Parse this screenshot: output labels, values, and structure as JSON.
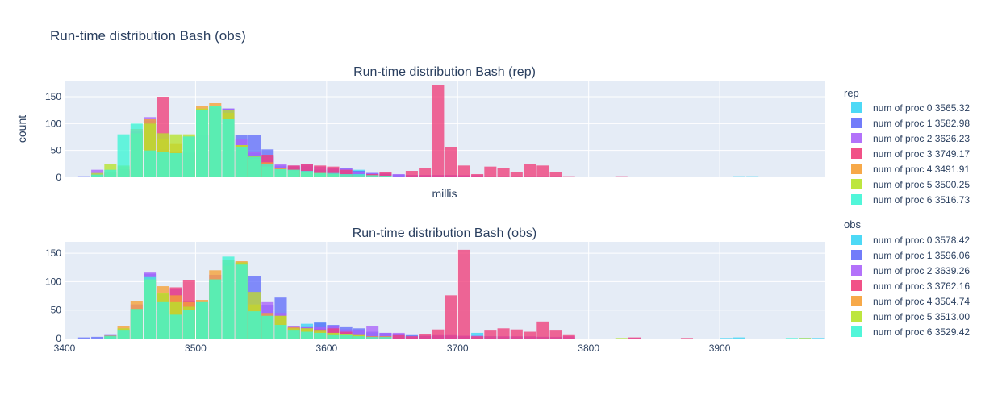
{
  "title": "Run-time distribution Bash (obs)",
  "chart_data": [
    {
      "type": "bar",
      "title": "Run-time distribution Bash (rep)",
      "xlabel": "millis",
      "ylabel": "count",
      "xlim": [
        3400,
        3980
      ],
      "ylim": [
        0,
        180
      ],
      "yticks": [
        0,
        50,
        100,
        150
      ],
      "bin_width": 10,
      "stacked": "overlay",
      "legend_title": "rep",
      "series": [
        {
          "name": "num of proc 0  3565.32",
          "color": "#3ad5f5",
          "x": [
            3535,
            3545,
            3555,
            3565,
            3575,
            3585,
            3595,
            3605,
            3615,
            3625,
            3635,
            3645,
            3655,
            3665,
            3675,
            3685,
            3695,
            3705,
            3715,
            3725,
            3735,
            3745,
            3755,
            3765,
            3775,
            3785,
            3915,
            3925
          ],
          "y": [
            40,
            45,
            40,
            20,
            18,
            20,
            14,
            12,
            12,
            14,
            8,
            6,
            5,
            4,
            3,
            3,
            3,
            2,
            2,
            2,
            2,
            2,
            2,
            2,
            2,
            1,
            2,
            2
          ]
        },
        {
          "name": "num of proc 1  3582.98",
          "color": "#636efa",
          "x": [
            3415,
            3425,
            3435,
            3445,
            3455,
            3465,
            3475,
            3485,
            3495,
            3505,
            3515,
            3525,
            3535,
            3545,
            3555,
            3565,
            3575,
            3585,
            3595,
            3605,
            3615,
            3625,
            3635,
            3645,
            3655,
            3665,
            3675,
            3685,
            3695,
            3705
          ],
          "y": [
            2,
            5,
            8,
            12,
            80,
            106,
            50,
            48,
            46,
            78,
            128,
            128,
            78,
            78,
            52,
            22,
            20,
            22,
            14,
            16,
            18,
            12,
            8,
            6,
            5,
            4,
            4,
            4,
            4,
            3
          ]
        },
        {
          "name": "num of proc 2  3626.23",
          "color": "#ab63fa",
          "x": [
            3425,
            3435,
            3445,
            3455,
            3465,
            3475,
            3485,
            3495,
            3505,
            3515,
            3525,
            3535,
            3545,
            3555,
            3565,
            3575,
            3585,
            3595,
            3605,
            3615,
            3625,
            3635,
            3645,
            3655,
            3665,
            3675,
            3685,
            3695,
            3705,
            3715,
            3725,
            3735,
            3745,
            3755,
            3765,
            3775,
            3835
          ],
          "y": [
            14,
            8,
            15,
            85,
            112,
            52,
            48,
            46,
            78,
            130,
            128,
            70,
            48,
            38,
            24,
            22,
            24,
            20,
            18,
            16,
            10,
            8,
            8,
            6,
            4,
            4,
            4,
            4,
            4,
            4,
            2,
            2,
            2,
            2,
            2,
            2,
            1
          ]
        },
        {
          "name": "num of proc 3  3749.17",
          "color": "#ef3e7a",
          "x": [
            3475,
            3545,
            3555,
            3575,
            3585,
            3595,
            3605,
            3615,
            3635,
            3645,
            3665,
            3675,
            3685,
            3695,
            3705,
            3715,
            3725,
            3735,
            3745,
            3755,
            3765,
            3775,
            3785,
            3815,
            3825
          ],
          "y": [
            150,
            38,
            42,
            22,
            25,
            22,
            20,
            14,
            6,
            10,
            12,
            18,
            171,
            57,
            22,
            6,
            20,
            18,
            10,
            24,
            22,
            10,
            2,
            1,
            2
          ]
        },
        {
          "name": "num of proc 4  3491.91",
          "color": "#f6a035",
          "x": [
            3435,
            3445,
            3455,
            3465,
            3475,
            3485,
            3495,
            3505,
            3515,
            3525,
            3535,
            3545,
            3555,
            3565,
            3575,
            3585,
            3595,
            3605,
            3615,
            3625,
            3635,
            3645
          ],
          "y": [
            10,
            20,
            90,
            108,
            72,
            62,
            76,
            132,
            138,
            120,
            60,
            35,
            28,
            18,
            12,
            10,
            8,
            6,
            5,
            4,
            4,
            3
          ]
        },
        {
          "name": "num of proc 5  3500.25",
          "color": "#b6e32b",
          "x": [
            3425,
            3435,
            3445,
            3455,
            3465,
            3475,
            3485,
            3495,
            3505,
            3515,
            3525,
            3535,
            3545,
            3555,
            3565,
            3575,
            3585,
            3595,
            3605,
            3775,
            3805,
            3865,
            3935
          ],
          "y": [
            8,
            24,
            22,
            82,
            100,
            82,
            80,
            80,
            128,
            132,
            125,
            60,
            40,
            20,
            15,
            14,
            10,
            8,
            6,
            1,
            1,
            1,
            1
          ]
        },
        {
          "name": "num of proc 6  3516.73",
          "color": "#3ef5d5",
          "x": [
            3425,
            3435,
            3445,
            3455,
            3465,
            3475,
            3485,
            3495,
            3505,
            3515,
            3525,
            3535,
            3545,
            3555,
            3565,
            3575,
            3585,
            3595,
            3605,
            3615,
            3625,
            3635,
            3645,
            3945,
            3955,
            3965
          ],
          "y": [
            5,
            14,
            80,
            100,
            50,
            48,
            45,
            76,
            125,
            132,
            108,
            56,
            38,
            24,
            15,
            14,
            12,
            8,
            8,
            6,
            6,
            4,
            3,
            1,
            1,
            1
          ]
        }
      ]
    },
    {
      "type": "bar",
      "title": "Run-time distribution Bash (obs)",
      "xlabel": "",
      "ylabel": "",
      "xlim": [
        3400,
        3980
      ],
      "ylim": [
        0,
        170
      ],
      "yticks": [
        0,
        50,
        100,
        150
      ],
      "xticks": [
        3400,
        3500,
        3600,
        3700,
        3800,
        3900
      ],
      "bin_width": 10,
      "stacked": "overlay",
      "legend_title": "obs",
      "series": [
        {
          "name": "num of proc 0  3578.42",
          "color": "#3ad5f5",
          "x": [
            3545,
            3555,
            3565,
            3575,
            3585,
            3595,
            3605,
            3615,
            3625,
            3635,
            3645,
            3655,
            3665,
            3675,
            3685,
            3695,
            3705,
            3715,
            3725,
            3735,
            3745,
            3755,
            3765,
            3775,
            3785,
            3905,
            3915,
            3965,
            3975
          ],
          "y": [
            48,
            40,
            40,
            18,
            26,
            28,
            22,
            16,
            14,
            10,
            8,
            6,
            5,
            4,
            4,
            5,
            4,
            10,
            4,
            3,
            3,
            3,
            3,
            2,
            1,
            1,
            2,
            1,
            1
          ]
        },
        {
          "name": "num of proc 1  3596.06",
          "color": "#636efa",
          "x": [
            3415,
            3425,
            3435,
            3445,
            3455,
            3465,
            3475,
            3485,
            3495,
            3505,
            3515,
            3525,
            3535,
            3545,
            3555,
            3565,
            3575,
            3585,
            3595,
            3605,
            3615,
            3625,
            3635,
            3645,
            3655,
            3665,
            3675,
            3685,
            3695,
            3705
          ],
          "y": [
            2,
            3,
            6,
            14,
            52,
            114,
            60,
            44,
            50,
            60,
            104,
            134,
            102,
            110,
            58,
            72,
            20,
            20,
            28,
            24,
            20,
            18,
            12,
            10,
            8,
            6,
            5,
            5,
            5,
            4
          ]
        },
        {
          "name": "num of proc 2  3639.26",
          "color": "#ab63fa",
          "x": [
            3435,
            3445,
            3455,
            3465,
            3475,
            3485,
            3495,
            3505,
            3515,
            3525,
            3535,
            3545,
            3555,
            3565,
            3575,
            3585,
            3595,
            3605,
            3615,
            3625,
            3635,
            3645,
            3655,
            3665,
            3675,
            3685,
            3695,
            3705,
            3715,
            3725,
            3735,
            3745,
            3755,
            3765,
            3775,
            3785,
            3835
          ],
          "y": [
            6,
            16,
            60,
            116,
            78,
            88,
            66,
            64,
            112,
            138,
            134,
            82,
            64,
            45,
            22,
            20,
            20,
            22,
            16,
            14,
            22,
            10,
            10,
            4,
            4,
            6,
            6,
            5,
            5,
            4,
            4,
            4,
            4,
            3,
            3,
            4,
            1
          ]
        },
        {
          "name": "num of proc 3  3762.16",
          "color": "#ef3e7a",
          "x": [
            3485,
            3495,
            3575,
            3585,
            3595,
            3605,
            3615,
            3625,
            3635,
            3645,
            3655,
            3665,
            3675,
            3685,
            3695,
            3705,
            3715,
            3725,
            3735,
            3745,
            3755,
            3765,
            3775,
            3785,
            3835,
            3875
          ],
          "y": [
            90,
            102,
            18,
            16,
            16,
            18,
            12,
            6,
            4,
            4,
            6,
            4,
            8,
            16,
            76,
            156,
            4,
            14,
            18,
            16,
            12,
            30,
            14,
            6,
            2,
            1
          ]
        },
        {
          "name": "num of proc 4  3504.74",
          "color": "#f6a035",
          "x": [
            3445,
            3455,
            3465,
            3475,
            3485,
            3495,
            3505,
            3515,
            3525,
            3535,
            3545,
            3555,
            3565,
            3575,
            3585,
            3595,
            3605,
            3615,
            3625,
            3635,
            3645
          ],
          "y": [
            22,
            66,
            104,
            92,
            76,
            64,
            68,
            120,
            128,
            136,
            60,
            45,
            40,
            20,
            18,
            12,
            10,
            8,
            6,
            4,
            4
          ]
        },
        {
          "name": "num of proc 5  3513.00",
          "color": "#b6e32b",
          "x": [
            3435,
            3445,
            3455,
            3465,
            3475,
            3485,
            3495,
            3505,
            3515,
            3525,
            3535,
            3545,
            3555,
            3565,
            3575,
            3585,
            3595,
            3605,
            3615,
            3625,
            3825,
            3965
          ],
          "y": [
            5,
            18,
            52,
            104,
            80,
            64,
            56,
            64,
            104,
            138,
            134,
            82,
            40,
            40,
            18,
            18,
            14,
            10,
            8,
            6,
            1,
            1
          ]
        },
        {
          "name": "num of proc 6  3529.42",
          "color": "#3ef5d5",
          "x": [
            3435,
            3445,
            3455,
            3465,
            3475,
            3485,
            3495,
            3505,
            3515,
            3525,
            3535,
            3545,
            3555,
            3565,
            3575,
            3585,
            3595,
            3605,
            3615,
            3625,
            3635,
            3645,
            3955
          ],
          "y": [
            4,
            14,
            52,
            108,
            64,
            42,
            50,
            64,
            104,
            144,
            130,
            48,
            40,
            24,
            14,
            12,
            10,
            6,
            6,
            4,
            3,
            3,
            1
          ]
        }
      ]
    }
  ]
}
